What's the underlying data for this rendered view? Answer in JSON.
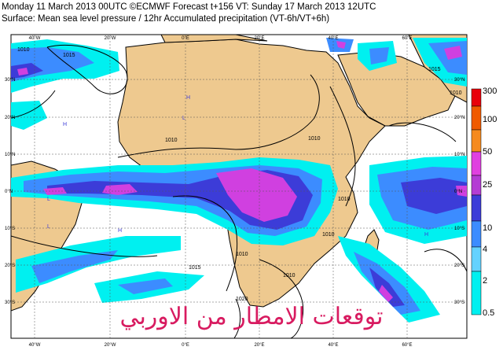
{
  "header": {
    "line1": "Monday 11 March 2013 00UTC ©ECMWF Forecast t+156 VT: Sunday 17 March 2013 12UTC",
    "line2": "Surface: Mean sea level pressure / 12hr Accumulated precipitation (VT-6h/VT+6h)"
  },
  "axes": {
    "lon_top": [
      "40°W",
      "20°W",
      "0°E",
      "20°E",
      "40°E",
      "60°E"
    ],
    "lon_bottom": [
      "40°W",
      "20°W",
      "0°E",
      "20°E",
      "40°E",
      "60°E"
    ],
    "lat_left": [
      "30°N",
      "20°N",
      "10°N",
      "0°N",
      "10°S",
      "20°S",
      "30°S"
    ],
    "lat_right": [
      "30°N",
      "20°N",
      "10°N",
      "0°N",
      "10°S",
      "20°S",
      "30°S"
    ]
  },
  "isobars": [
    "1010",
    "1010",
    "1015",
    "1010",
    "1010",
    "1010",
    "1015",
    "1010",
    "1020",
    "1010",
    "1015",
    "1010"
  ],
  "pressure_marks": [
    "H",
    "L",
    "L",
    "H",
    "L",
    "H",
    "L",
    "H"
  ],
  "colorbar": {
    "labels": [
      "300",
      "100",
      "50",
      "25",
      "10",
      "4",
      "2",
      "0.5"
    ],
    "colors": [
      "#e8000b",
      "#f05a00",
      "#f58a1f",
      "#e040e0",
      "#b43cd4",
      "#3c3cd8",
      "#3c8cff",
      "#64d2ff",
      "#00f0f0"
    ]
  },
  "colors": {
    "land": "#eec98f",
    "ocean": "#ffffff",
    "precip_light": "#00f0f0",
    "precip_moderate": "#3c8cff",
    "precip_heavy": "#3c3cd8",
    "precip_intense": "#d040e0"
  },
  "watermark": "توقعات الامطار من الاوربي"
}
